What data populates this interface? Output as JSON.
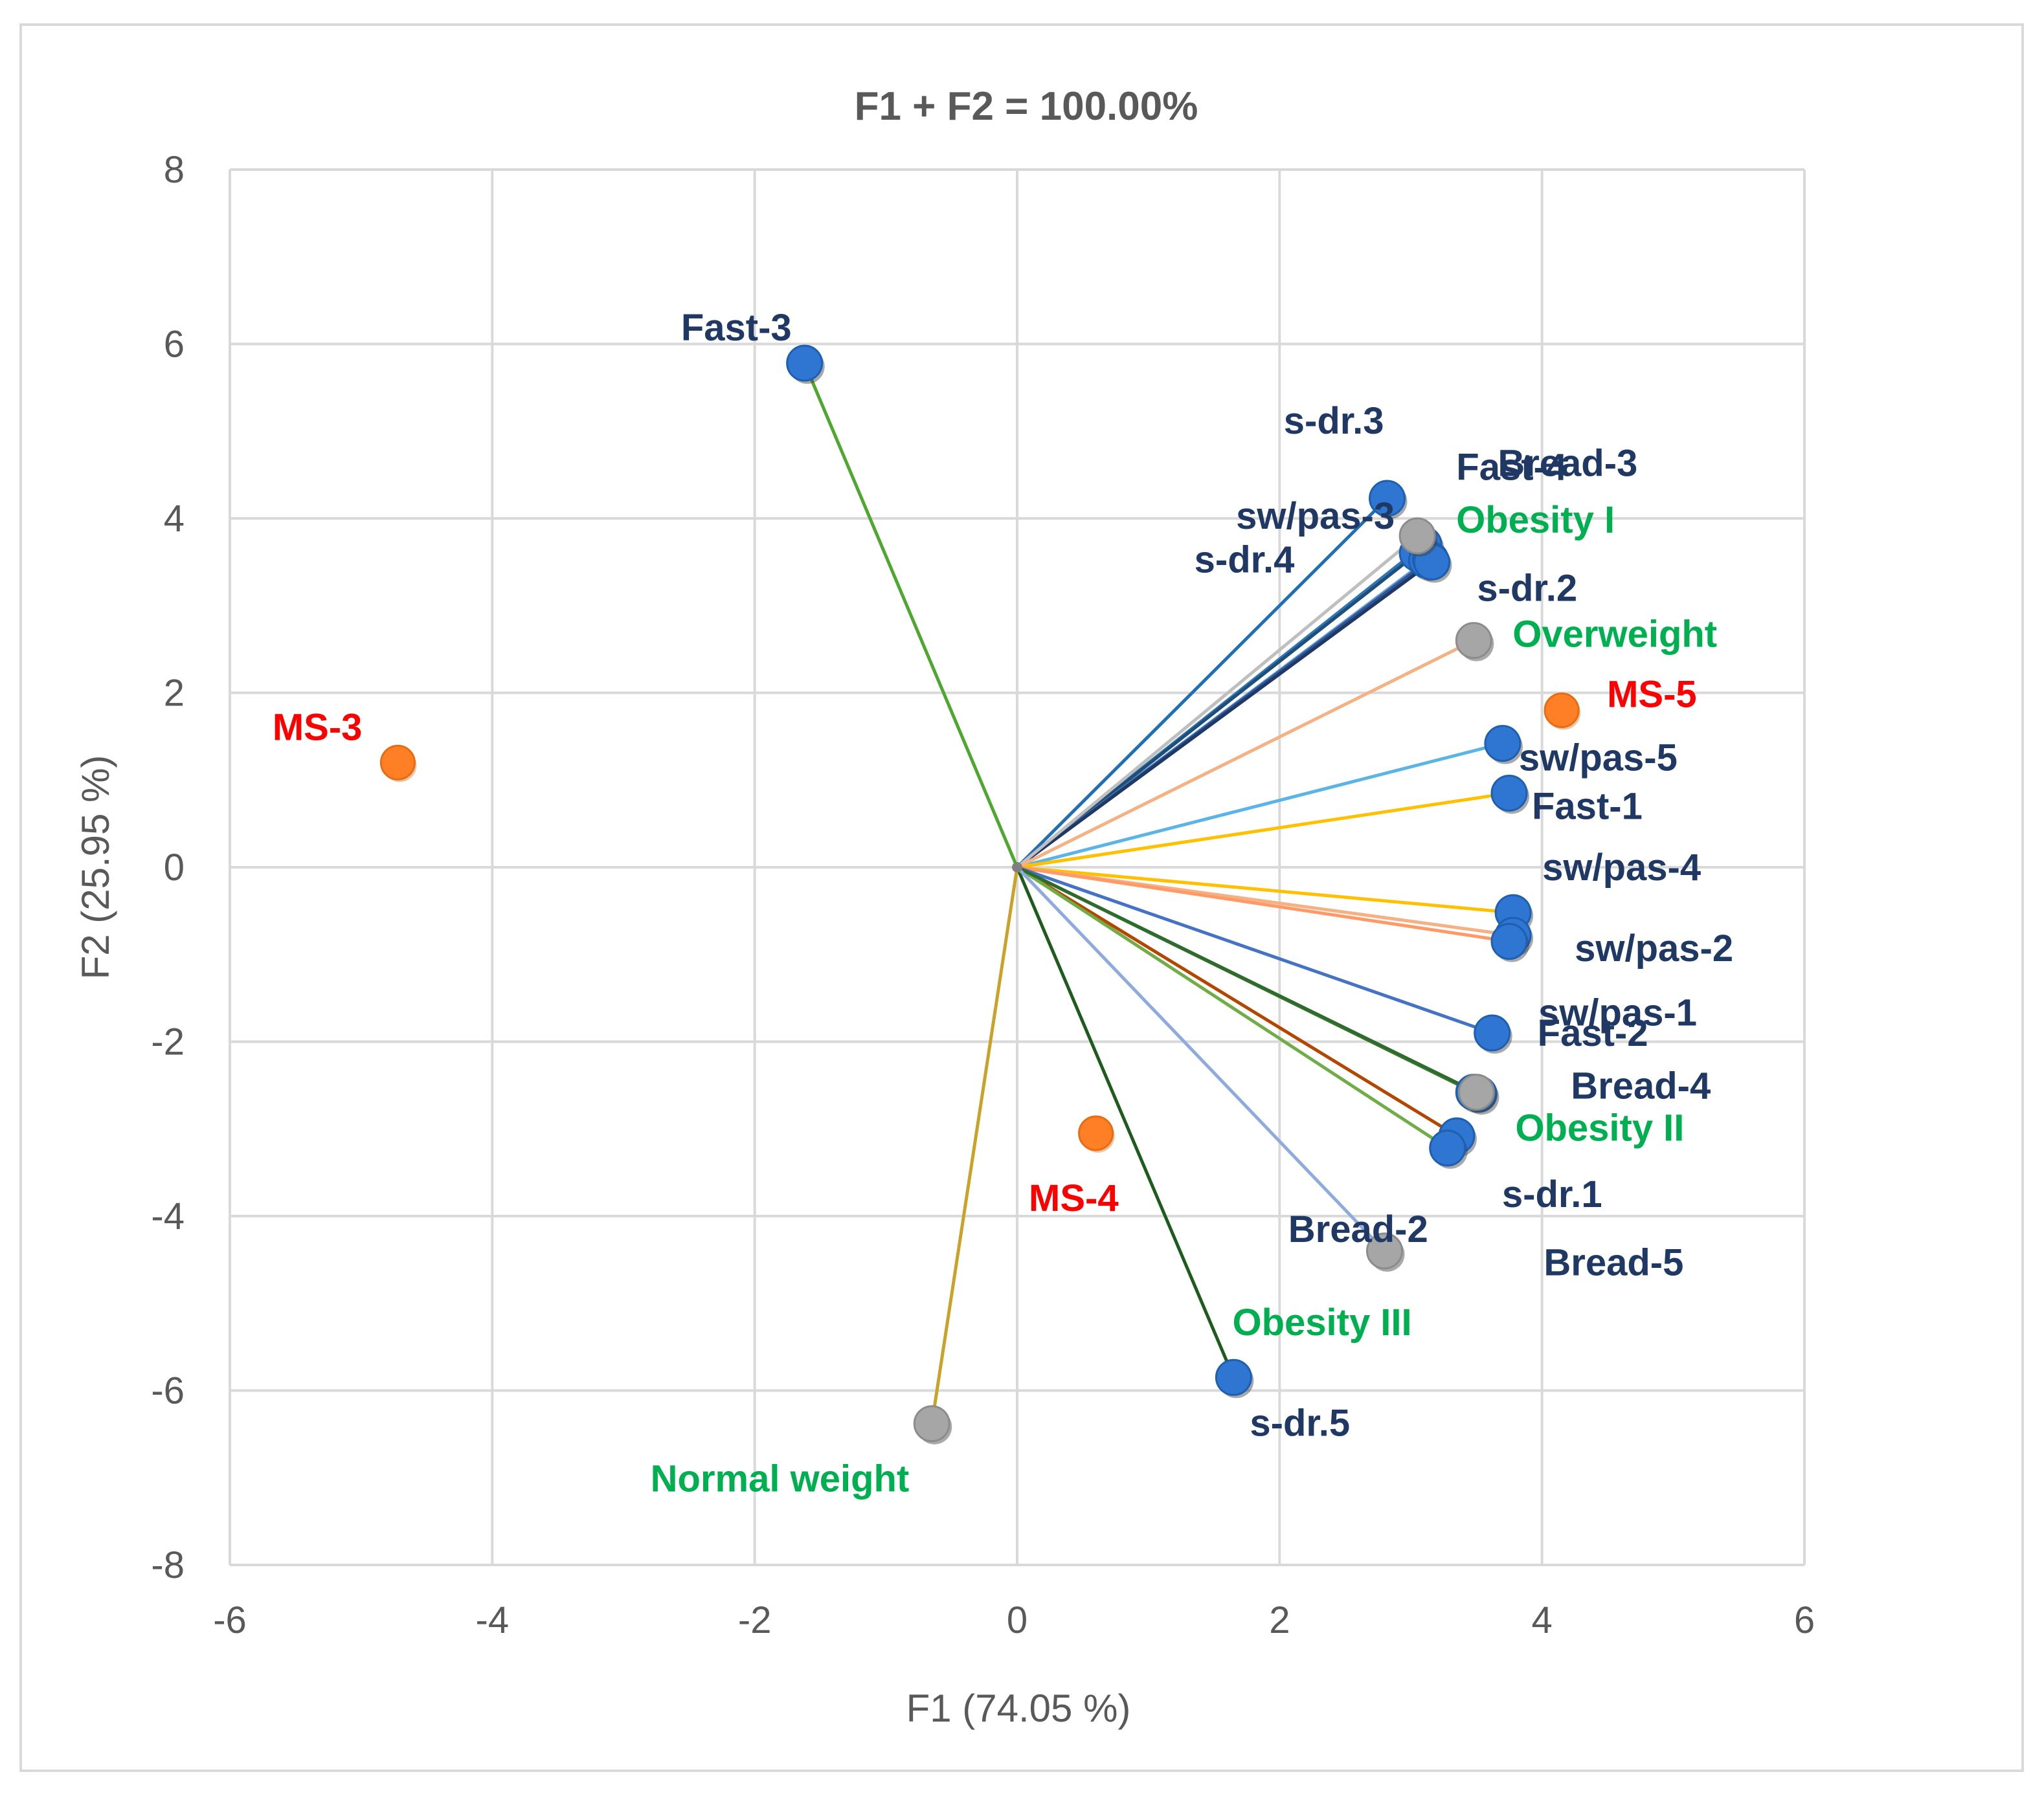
{
  "chart_data": {
    "type": "biplot",
    "title": "F1 + F2 = 100.00%",
    "xlabel": "F1 (74.05 %)",
    "ylabel": "F2 (25.95 %)",
    "xlim": [
      -6,
      6
    ],
    "ylim": [
      -8,
      8
    ],
    "x_ticks": [
      -6,
      -4,
      -2,
      0,
      2,
      4,
      6
    ],
    "y_ticks": [
      -8,
      -6,
      -4,
      -2,
      0,
      2,
      4,
      6,
      8
    ],
    "grid": true,
    "colors": {
      "variable_point": "#2f76d2",
      "observation_point": "#ff7f27",
      "category_point": "#a6a6a6",
      "variable_label": "#1f3864",
      "observation_label": "#ff0000",
      "category_label": "#00b050"
    },
    "variables": [
      {
        "name": "Fast-3",
        "x": -1.62,
        "y": 5.78,
        "line_color": "#4ea72e"
      },
      {
        "name": "s-dr.3",
        "x": 2.82,
        "y": 4.23,
        "line_color": "#1f6fb5"
      },
      {
        "name": "Fast-4",
        "x": 3.1,
        "y": 3.7,
        "line_color": "#2e75b6"
      },
      {
        "name": "sw/pas-3",
        "x": 3.05,
        "y": 3.6,
        "line_color": "#1f4e79"
      },
      {
        "name": "Bread-3",
        "x": 3.12,
        "y": 3.52,
        "line_color": "#5b9bd5"
      },
      {
        "name": "s-dr.4",
        "x": 3.15,
        "y": 3.53,
        "line_color": "#2f5597"
      },
      {
        "name": "s-dr.2",
        "x": 3.16,
        "y": 3.5,
        "line_color": "#203864"
      },
      {
        "name": "sw/pas-5",
        "x": 3.7,
        "y": 1.42,
        "line_color": "#5ab4e5"
      },
      {
        "name": "Fast-1",
        "x": 3.75,
        "y": 0.85,
        "line_color": "#ffc000"
      },
      {
        "name": "sw/pas-4",
        "x": 3.78,
        "y": -0.52,
        "line_color": "#ffc000"
      },
      {
        "name": "sw/pas-2",
        "x": 3.78,
        "y": -0.78,
        "line_color": "#f4b183"
      },
      {
        "name": "sw/pas-1",
        "x": 3.75,
        "y": -0.85,
        "line_color": "#ff9966"
      },
      {
        "name": "Fast-2",
        "x": 3.62,
        "y": -1.9,
        "line_color": "#4472c4"
      },
      {
        "name": "Bread-4",
        "x": 3.48,
        "y": -2.58,
        "line_color": "#38761d"
      },
      {
        "name": "s-dr.1",
        "x": 3.35,
        "y": -3.08,
        "line_color": "#b34700"
      },
      {
        "name": "Bread-2",
        "x": 3.28,
        "y": -3.22,
        "line_color": "#70ad47"
      },
      {
        "name": "s-dr.5",
        "x": 1.65,
        "y": -5.85,
        "line_color": "#1e5c1e"
      },
      {
        "name": "Bread-5",
        "x": 3.52,
        "y": -2.6,
        "line_color": "#548235"
      }
    ],
    "categories": [
      {
        "name": "Obesity I",
        "x": 3.05,
        "y": 3.8,
        "line_color": "#bfbfbf"
      },
      {
        "name": "Overweight",
        "x": 3.48,
        "y": 2.6,
        "line_color": "#f4b183"
      },
      {
        "name": "Obesity II",
        "x": 3.5,
        "y": -2.58,
        "line_color": "#2e6b2e"
      },
      {
        "name": "Obesity III",
        "x": 2.8,
        "y": -4.4,
        "line_color": "#8faadc"
      },
      {
        "name": "Normal weight",
        "x": -0.65,
        "y": -6.38,
        "line_color": "#c9a227"
      }
    ],
    "observations": [
      {
        "name": "MS-3",
        "x": -4.72,
        "y": 1.2
      },
      {
        "name": "MS-4",
        "x": 0.6,
        "y": -3.05
      },
      {
        "name": "MS-5",
        "x": 4.15,
        "y": 1.8
      }
    ]
  }
}
